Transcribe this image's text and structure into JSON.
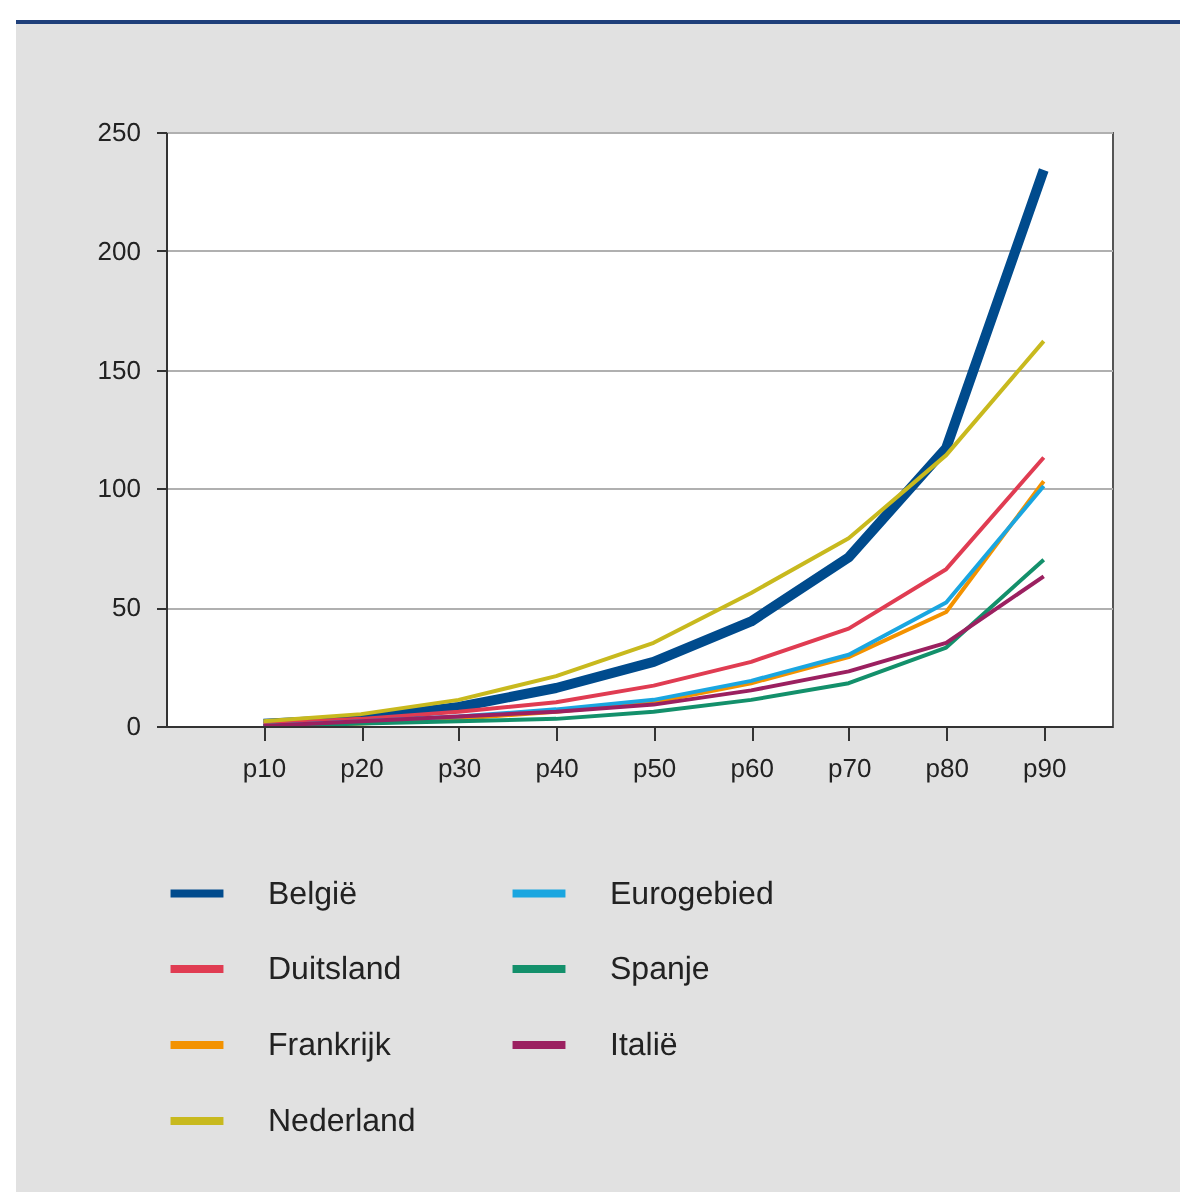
{
  "chart_data": {
    "type": "line",
    "categories": [
      "p10",
      "p20",
      "p30",
      "p40",
      "p50",
      "p60",
      "p70",
      "p80",
      "p90"
    ],
    "series": [
      {
        "name": "België",
        "color": "#004b8d",
        "values": [
          1,
          3,
          8,
          16,
          27,
          44,
          71,
          117,
          234
        ]
      },
      {
        "name": "Duitsland",
        "color": "#e03c52",
        "values": [
          1,
          3,
          6,
          10,
          17,
          27,
          41,
          66,
          113
        ]
      },
      {
        "name": "Frankrijk",
        "color": "#f39200",
        "values": [
          0,
          1,
          3,
          6,
          10,
          18,
          29,
          48,
          103
        ]
      },
      {
        "name": "Nederland",
        "color": "#c8b91e",
        "values": [
          2,
          5,
          11,
          21,
          35,
          56,
          79,
          114,
          162
        ]
      },
      {
        "name": "Eurogebied",
        "color": "#1aa6e0",
        "values": [
          0,
          2,
          4,
          7,
          11,
          19,
          30,
          52,
          101
        ]
      },
      {
        "name": "Spanje",
        "color": "#13906b",
        "values": [
          0,
          1,
          2,
          3,
          6,
          11,
          18,
          33,
          70
        ]
      },
      {
        "name": "Italië",
        "color": "#9b2060",
        "values": [
          0,
          2,
          4,
          6,
          9,
          15,
          23,
          35,
          63
        ]
      }
    ],
    "ylim": [
      0,
      250
    ],
    "yticks": [
      0,
      50,
      100,
      150,
      200,
      250
    ],
    "grid": "y",
    "legend": "bottom",
    "marker": "none",
    "line_style": "solid"
  }
}
